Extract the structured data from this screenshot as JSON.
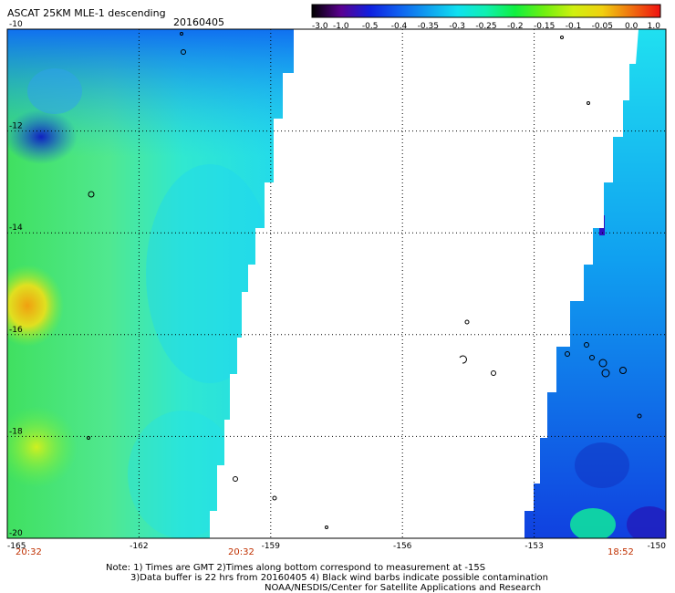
{
  "header": {
    "title": "ASCAT 25KM MLE-1 descending",
    "date": "20160405"
  },
  "colorbar": {
    "labels": [
      "-3.0",
      "-1.0",
      "-0.5",
      "-0.4",
      "-0.35",
      "-0.3",
      "-0.25",
      "-0.2",
      "-0.15",
      "-0.1",
      "-0.05",
      "0.0",
      "1.0"
    ],
    "colors": [
      "#000000",
      "#5a0090",
      "#1020e0",
      "#1060f0",
      "#10a0f0",
      "#10e0f0",
      "#10f0b0",
      "#10f040",
      "#70f010",
      "#d0f010",
      "#f0d010",
      "#f07010",
      "#f01010"
    ]
  },
  "axes": {
    "x_ticks": [
      "-165",
      "-162",
      "-159",
      "-156",
      "-153",
      "-150"
    ],
    "y_ticks": [
      "-10",
      "-12",
      "-14",
      "-16",
      "-18",
      "-20"
    ]
  },
  "times": {
    "left": "20:32",
    "middle": "20:32",
    "right": "18:52"
  },
  "notes": {
    "line1": "Note: 1) Times are GMT 2)Times along bottom correspond to measurement at -15S",
    "line2": "3)Data buffer is 22 hrs from 20160405 4) Black wind barbs indicate possible contamination",
    "line3": "NOAA/NESDIS/Center for Satellite Applications and Research"
  }
}
